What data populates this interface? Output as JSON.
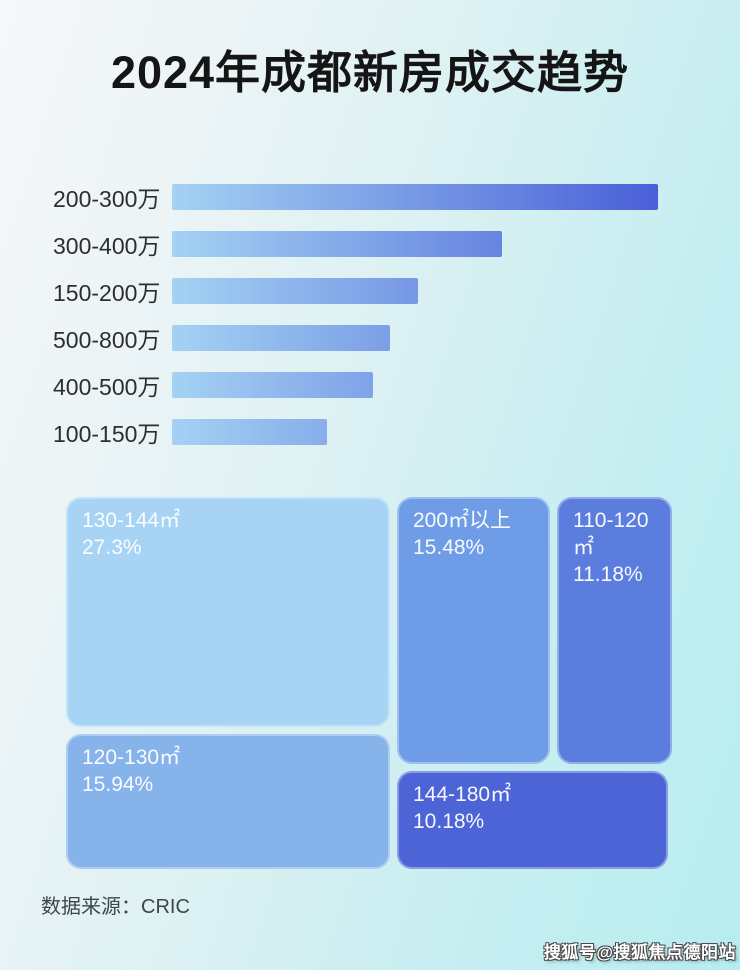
{
  "title": "2024年成都新房成交趋势",
  "colors": {
    "bar_gradient_start": "#a4d2f3",
    "bar_gradient_end": "#4a5fd8",
    "background_top_left": "#f6f8fa",
    "background_bottom_right": "#b7edf0",
    "title_text": "#151515",
    "bar_label_text": "#2e2e2e",
    "treemap_text": "#ffffff"
  },
  "chart_data": [
    {
      "type": "bar",
      "orientation": "horizontal",
      "categories": [
        "200-300万",
        "300-400万",
        "150-200万",
        "500-800万",
        "400-500万",
        "100-150万"
      ],
      "values_pct_of_max": [
        100,
        68,
        50.6,
        44.9,
        41.4,
        31.9
      ],
      "value_labels_shown": false,
      "axis_shown": false,
      "legend": "none"
    },
    {
      "type": "treemap",
      "items": [
        {
          "label": "130-144㎡",
          "value_pct": 27.3,
          "display": "27.3%",
          "color": "#a7d4f5"
        },
        {
          "label": "200㎡以上",
          "value_pct": 15.48,
          "display": "15.48%",
          "color": "#6e9ce7"
        },
        {
          "label": "110-120㎡",
          "value_pct": 11.18,
          "display": "11.18%",
          "color": "#5b7ede"
        },
        {
          "label": "120-130㎡",
          "value_pct": 15.94,
          "display": "15.94%",
          "color": "#85b3ea"
        },
        {
          "label": "144-180㎡",
          "value_pct": 10.18,
          "display": "10.18%",
          "color": "#4c64d5"
        }
      ],
      "legend": "none"
    }
  ],
  "footer": {
    "source_label": "数据来源：CRIC"
  },
  "watermark": {
    "text": "搜狐号@搜狐焦点德阳站"
  }
}
